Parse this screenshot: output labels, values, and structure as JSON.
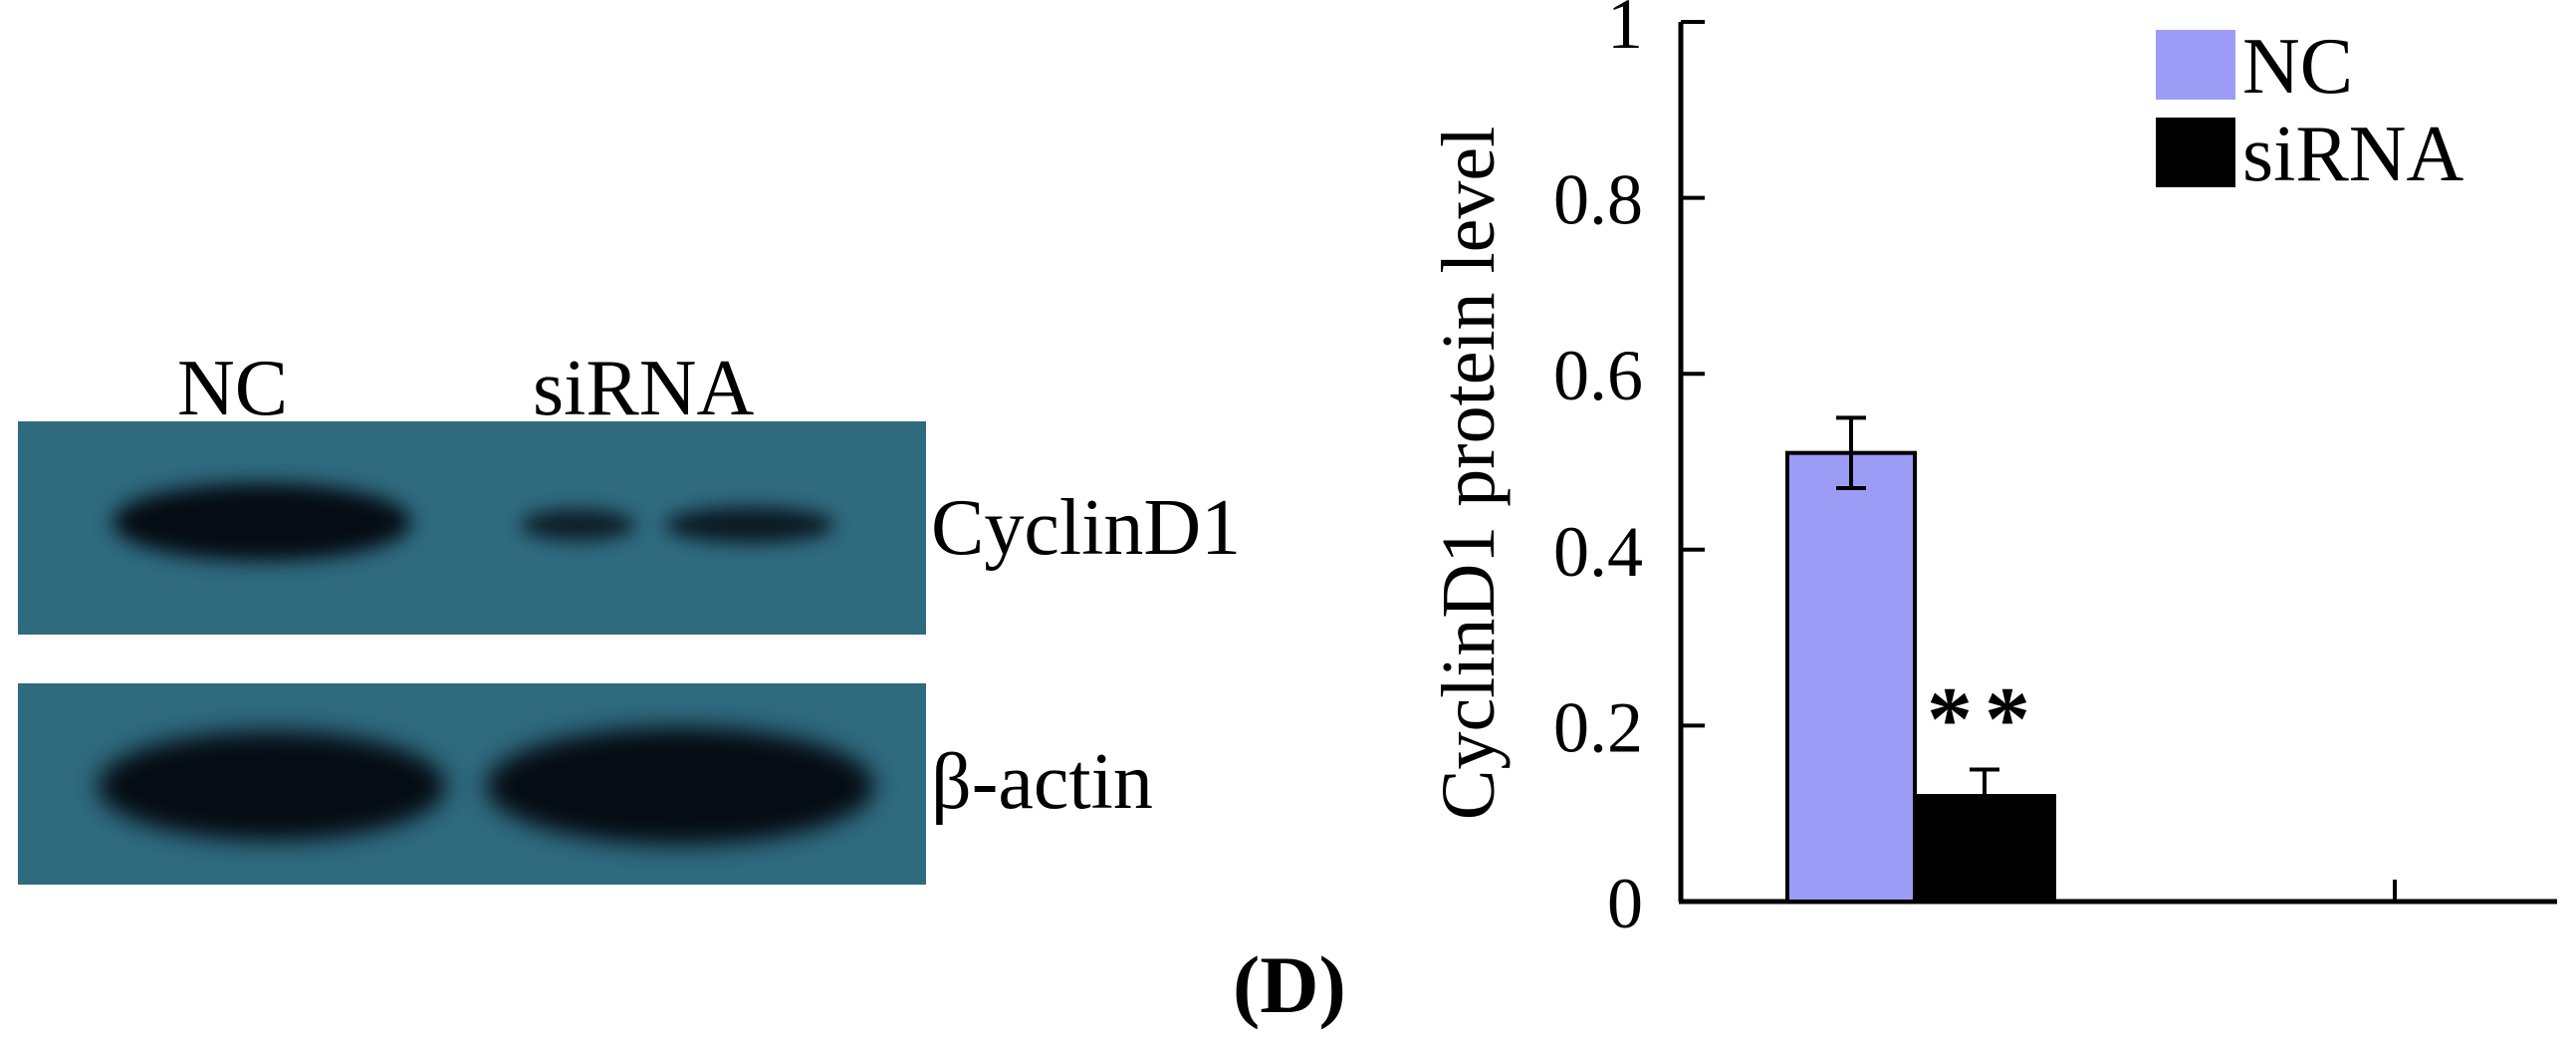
{
  "blot": {
    "lanes": [
      "NC",
      "siRNA"
    ],
    "rows": [
      {
        "label": "CyclinD1"
      },
      {
        "label": "β-actin"
      }
    ],
    "colors": {
      "membrane": "#2f6a7f",
      "band": "#050c13"
    }
  },
  "panel_label": "(D)",
  "chart_data": {
    "type": "bar",
    "ylabel": "CyclinD1 protein level",
    "ylim": [
      0,
      1
    ],
    "yticks": [
      0,
      0.2,
      0.4,
      0.6,
      0.8,
      1
    ],
    "ytick_labels": [
      "0",
      "0.2",
      "0.4",
      "0.6",
      "0.8",
      "1"
    ],
    "categories": [
      ""
    ],
    "series": [
      {
        "name": "NC",
        "values": [
          0.51
        ],
        "error": [
          0.04
        ],
        "color": "#9c9cf6"
      },
      {
        "name": "siRNA",
        "values": [
          0.12
        ],
        "error": [
          0.03
        ],
        "color": "#000000",
        "annotation": "**"
      }
    ],
    "legend": "top-right",
    "grid": false
  }
}
